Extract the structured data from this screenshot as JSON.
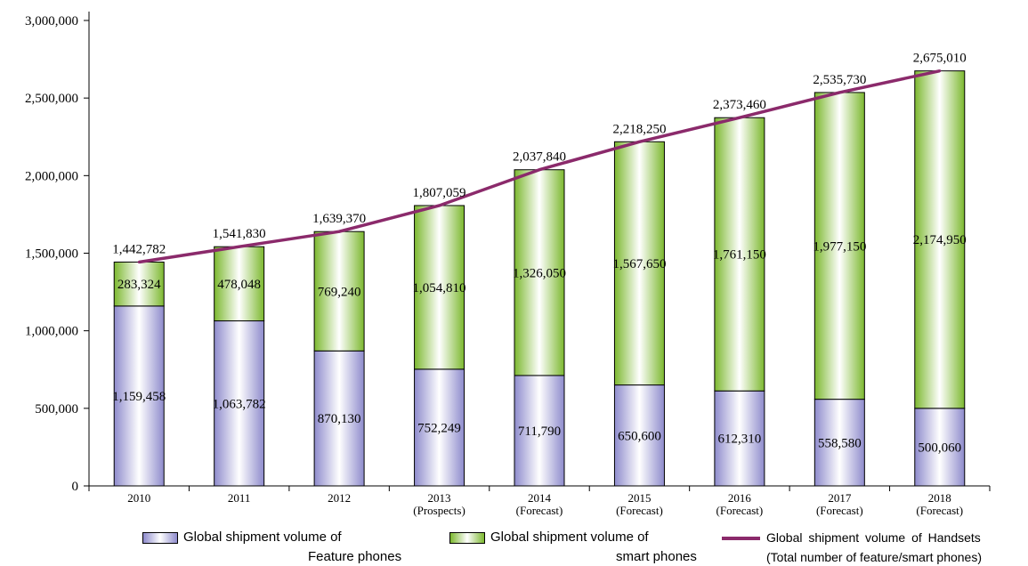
{
  "chart_data": {
    "type": "bar",
    "stacked": true,
    "categories": [
      [
        "2010"
      ],
      [
        "2011"
      ],
      [
        "2012"
      ],
      [
        "2013",
        "(Prospects)"
      ],
      [
        "2014",
        "(Forecast)"
      ],
      [
        "2015",
        "(Forecast)"
      ],
      [
        "2016",
        "(Forecast)"
      ],
      [
        "2017",
        "(Forecast)"
      ],
      [
        "2018",
        "(Forecast)"
      ]
    ],
    "series": [
      {
        "kind": "bar",
        "name": [
          "Global shipment volume of",
          "Feature phones"
        ],
        "values": [
          1159458,
          1063782,
          870130,
          752249,
          711790,
          650600,
          612310,
          558580,
          500060
        ],
        "labels": [
          "1,159,458",
          "1,063,782",
          "870,130",
          "752,249",
          "711,790",
          "650,600",
          "612,310",
          "558,580",
          "500,060"
        ],
        "color": "#9a98d4"
      },
      {
        "kind": "bar",
        "name": [
          "Global shipment volume of",
          "smart phones"
        ],
        "values": [
          283324,
          478048,
          769240,
          1054810,
          1326050,
          1567650,
          1761150,
          1977150,
          2174950
        ],
        "labels": [
          "283,324",
          "478,048",
          "769,240",
          "1,054,810",
          "1,326,050",
          "1,567,650",
          "1,761,150",
          "1,977,150",
          "2,174,950"
        ],
        "color": "#8cc63f"
      },
      {
        "kind": "line",
        "name": [
          "Global  shipment  volume  of  Handsets",
          "(Total number of feature/smart phones)"
        ],
        "values": [
          1442782,
          1541830,
          1639370,
          1807059,
          2037840,
          2218250,
          2373460,
          2535730,
          2675010
        ],
        "labels": [
          "1,442,782",
          "1,541,830",
          "1,639,370",
          "1,807,059",
          "2,037,840",
          "2,218,250",
          "2,373,460",
          "2,535,730",
          "2,675,010"
        ],
        "color": "#8b2a6b"
      }
    ],
    "yticks": [
      "0",
      "500,000",
      "1,000,000",
      "1,500,000",
      "2,000,000",
      "2,500,000",
      "3,000,000"
    ],
    "ylim": [
      0,
      3000000
    ],
    "grid": false,
    "legend_position": "bottom"
  }
}
